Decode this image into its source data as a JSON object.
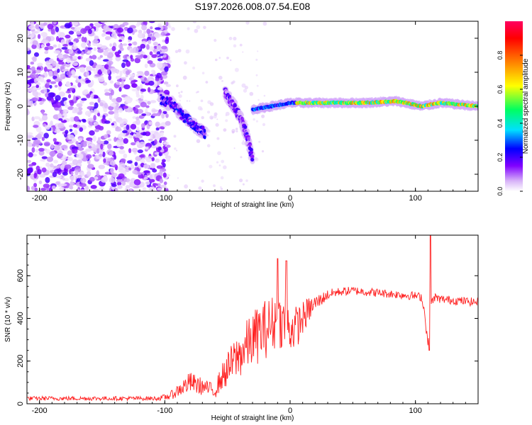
{
  "title": "S197.2026.008.07.54.E08",
  "chart_data": [
    {
      "type": "heatmap",
      "title": "S197.2026.008.07.54.E08",
      "xlabel": "Height of straight line (km)",
      "ylabel": "Frequency (Hz)",
      "xlim": [
        -210,
        150
      ],
      "ylim": [
        -25,
        25
      ],
      "xticks": [
        -200,
        -100,
        0,
        100
      ],
      "xtick_labels": [
        "-200",
        "-100",
        "0",
        "100"
      ],
      "yticks": [
        -20,
        -10,
        0,
        10,
        20
      ],
      "ytick_labels": [
        "-20",
        "-10",
        "0",
        "10",
        "20"
      ],
      "colorbar": {
        "label": "Normalized spectral amplitude",
        "range": [
          0,
          1
        ],
        "ticks": [
          0.0,
          0.2,
          0.4,
          0.6,
          0.8
        ],
        "tick_labels": [
          "0.0",
          "0.2",
          "0.4",
          "0.6",
          "0.8"
        ],
        "colormap": [
          "#ffffff",
          "#d8b4f8",
          "#8000ff",
          "#0000ff",
          "#00e0ff",
          "#00ff60",
          "#ffff00",
          "#ff8000",
          "#ff0000",
          "#ff0060"
        ]
      },
      "noise_region": {
        "x_range": [
          -210,
          -105
        ],
        "y_range": [
          -25,
          25
        ],
        "amplitude": 0.15
      },
      "features": [
        {
          "name": "descending streak",
          "points": [
            [
              -103,
              2
            ],
            [
              -95,
              1
            ],
            [
              -85,
              -3
            ],
            [
              -75,
              -6
            ],
            [
              -68,
              -8
            ]
          ],
          "amplitude": 0.3
        },
        {
          "name": "second streak",
          "points": [
            [
              -52,
              4
            ],
            [
              -45,
              0
            ],
            [
              -40,
              -3
            ],
            [
              -35,
              -8
            ],
            [
              -30,
              -15
            ]
          ],
          "amplitude": 0.25
        },
        {
          "name": "carrier line",
          "points": [
            [
              -30,
              -1
            ],
            [
              -15,
              0
            ],
            [
              0,
              1
            ],
            [
              20,
              1
            ],
            [
              60,
              1
            ],
            [
              85,
              1.5
            ],
            [
              105,
              0
            ],
            [
              120,
              1
            ],
            [
              150,
              0
            ]
          ],
          "amplitude": 0.8
        }
      ]
    },
    {
      "type": "line",
      "xlabel": "Height of straight line (km)",
      "ylabel": "SNR (10 * v/v)",
      "xlim": [
        -210,
        150
      ],
      "ylim": [
        0,
        790
      ],
      "xticks": [
        -200,
        -100,
        0,
        100
      ],
      "xtick_labels": [
        "-200",
        "-100",
        "0",
        "100"
      ],
      "yticks": [
        0,
        200,
        400,
        600
      ],
      "ytick_labels": [
        "0",
        "200",
        "400",
        "600"
      ],
      "color": "#ff2020",
      "series": [
        {
          "name": "SNR",
          "x": [
            -210,
            -180,
            -150,
            -120,
            -105,
            -100,
            -95,
            -90,
            -85,
            -80,
            -75,
            -70,
            -65,
            -60,
            -55,
            -50,
            -45,
            -40,
            -35,
            -30,
            -25,
            -20,
            -15,
            -10,
            -5,
            0,
            5,
            10,
            15,
            20,
            25,
            30,
            35,
            40,
            50,
            60,
            70,
            80,
            90,
            100,
            105,
            108,
            110,
            112,
            115,
            120,
            130,
            140,
            150
          ],
          "y": [
            25,
            25,
            25,
            25,
            25,
            30,
            40,
            60,
            80,
            100,
            90,
            80,
            70,
            60,
            120,
            160,
            200,
            230,
            270,
            300,
            330,
            350,
            370,
            390,
            380,
            350,
            360,
            400,
            440,
            470,
            490,
            510,
            520,
            525,
            530,
            525,
            520,
            515,
            510,
            505,
            500,
            400,
            270,
            450,
            500,
            490,
            485,
            480,
            475
          ],
          "noise": [
            10,
            10,
            10,
            10,
            10,
            15,
            20,
            30,
            40,
            50,
            45,
            40,
            35,
            35,
            60,
            80,
            100,
            110,
            120,
            130,
            140,
            140,
            140,
            130,
            120,
            110,
            100,
            80,
            60,
            40,
            30,
            25,
            22,
            20,
            20,
            20,
            20,
            20,
            20,
            20,
            20,
            30,
            40,
            30,
            20,
            20,
            20,
            20,
            20
          ]
        }
      ],
      "spikes": [
        {
          "x": -10,
          "y": 680
        },
        {
          "x": -3,
          "y": 670
        },
        {
          "x": 112,
          "y": 790
        },
        {
          "x": 111,
          "y": 250
        }
      ]
    }
  ]
}
